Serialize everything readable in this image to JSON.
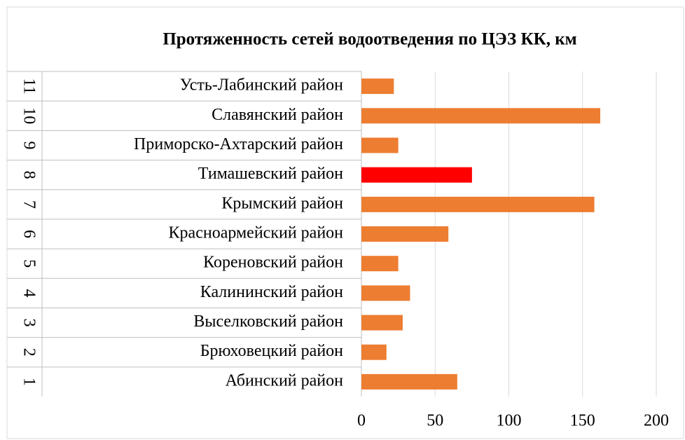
{
  "chart_data": {
    "type": "bar",
    "orientation": "horizontal",
    "title": "Протяженность сетей водоотведения по ЦЭЗ КК, км",
    "category_numbers": [
      "1",
      "2",
      "3",
      "4",
      "5",
      "6",
      "7",
      "8",
      "9",
      "10",
      "11"
    ],
    "categories": [
      "Абинский район",
      "Брюховецкий район",
      "Выселковский район",
      "Калининский район",
      "Кореновский район",
      "Красноармейский район",
      "Крымский район",
      "Тимашевский район",
      "Приморско-Ахтарский  район",
      "Славянский район",
      "Усть-Лабинский район"
    ],
    "values": [
      65,
      17,
      28,
      33,
      25,
      59,
      158,
      75,
      25,
      162,
      22
    ],
    "colors": [
      "#ed7d31",
      "#ed7d31",
      "#ed7d31",
      "#ed7d31",
      "#ed7d31",
      "#ed7d31",
      "#ed7d31",
      "#ff0000",
      "#ed7d31",
      "#ed7d31",
      "#ed7d31"
    ],
    "xlim": [
      0,
      200
    ],
    "xticks": [
      0,
      50,
      100,
      150,
      200
    ],
    "grid": true
  }
}
